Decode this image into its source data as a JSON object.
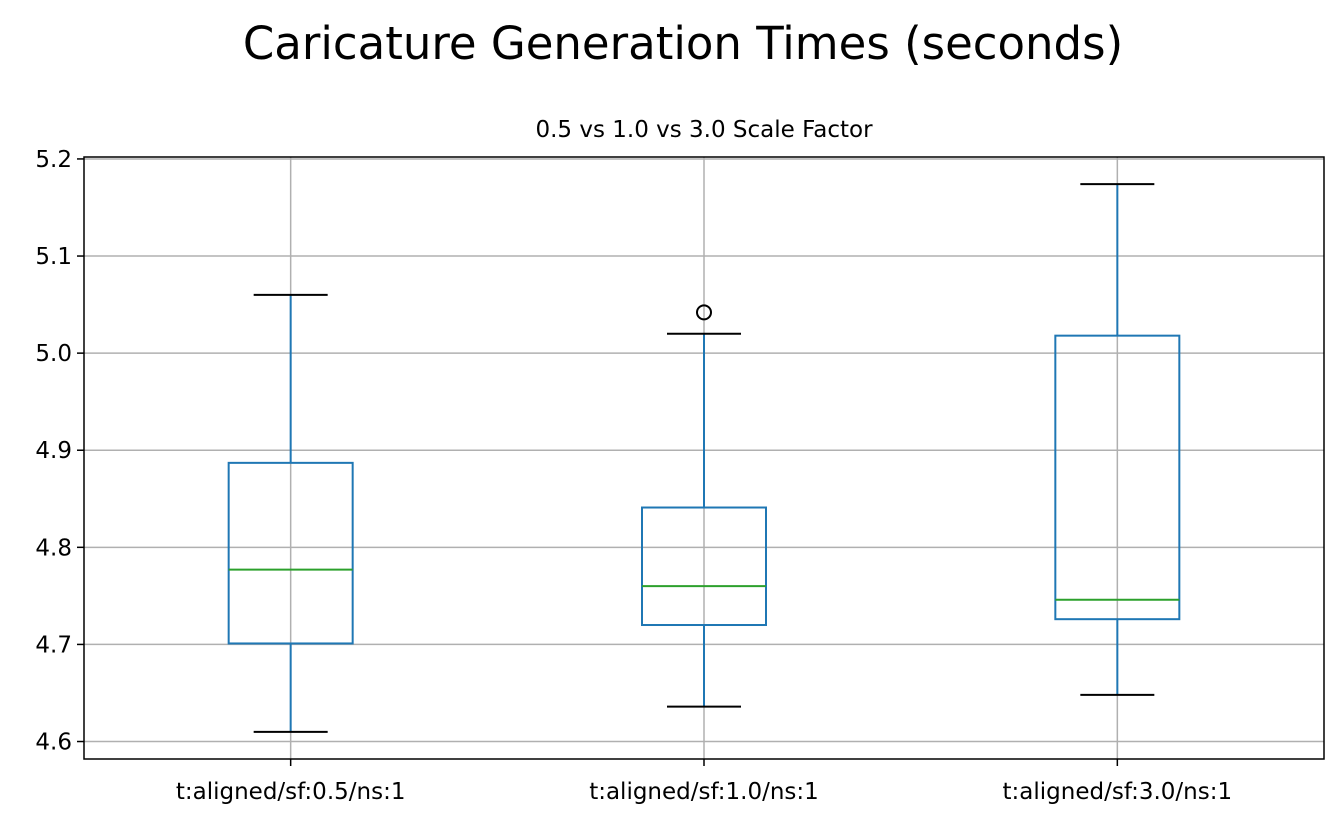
{
  "chart_data": {
    "type": "box",
    "title": "Caricature Generation Times (seconds)",
    "subtitle": "0.5 vs 1.0 vs 3.0 Scale Factor",
    "xlabel": "",
    "ylabel": "",
    "categories": [
      "t:aligned/sf:0.5/ns:1",
      "t:aligned/sf:1.0/ns:1",
      "t:aligned/sf:3.0/ns:1"
    ],
    "boxes": [
      {
        "whisker_low": 4.61,
        "q1": 4.701,
        "median": 4.777,
        "q3": 4.887,
        "whisker_high": 5.06,
        "outliers": []
      },
      {
        "whisker_low": 4.636,
        "q1": 4.72,
        "median": 4.76,
        "q3": 4.841,
        "whisker_high": 5.02,
        "outliers": [
          5.042
        ]
      },
      {
        "whisker_low": 4.648,
        "q1": 4.726,
        "median": 4.746,
        "q3": 5.018,
        "whisker_high": 5.174,
        "outliers": []
      }
    ],
    "ylim": [
      4.582,
      5.202
    ],
    "yticks": [
      "4.6",
      "4.7",
      "4.8",
      "4.9",
      "5.0",
      "5.1",
      "5.2"
    ],
    "grid": true,
    "colors": {
      "box": "#1f77b4",
      "median": "#2ca02c",
      "caps": "#000000",
      "grid": "#b0b0b0"
    }
  }
}
